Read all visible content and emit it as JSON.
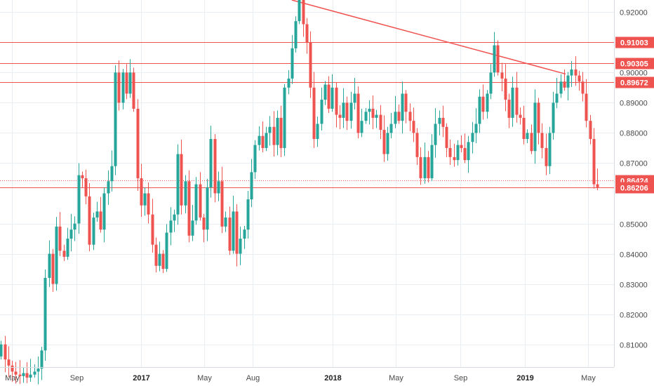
{
  "colors": {
    "up": "#26a69a",
    "down": "#ef5350",
    "grid": "#e9eef2",
    "level": "#ef5350",
    "trend": "#ef5350",
    "label_bg": "#ef5350",
    "axis_text": "#4a4a4a",
    "background": "#ffffff"
  },
  "chart_data": {
    "type": "candlestick",
    "title": "",
    "xlabel": "",
    "ylabel": "",
    "ylim": [
      0.8025,
      0.924
    ],
    "x_range": [
      "2016-04-08",
      "2019-06-20"
    ],
    "grid": true,
    "y_ticks": [
      "0.92000",
      "0.91000",
      "0.90000",
      "0.89000",
      "0.88000",
      "0.87000",
      "0.85000",
      "0.84000",
      "0.83000",
      "0.82000",
      "0.81000"
    ],
    "x_ticks": [
      {
        "label": "May",
        "date": "2016-05-01",
        "bold": false
      },
      {
        "label": "Sep",
        "date": "2016-09-01",
        "bold": false
      },
      {
        "label": "2017",
        "date": "2017-01-01",
        "bold": true
      },
      {
        "label": "May",
        "date": "2017-05-01",
        "bold": false
      },
      {
        "label": "Aug",
        "date": "2017-08-01",
        "bold": false
      },
      {
        "label": "2018",
        "date": "2018-01-01",
        "bold": true
      },
      {
        "label": "May",
        "date": "2018-05-01",
        "bold": false
      },
      {
        "label": "Sep",
        "date": "2018-09-01",
        "bold": false
      },
      {
        "label": "2019",
        "date": "2019-01-01",
        "bold": true
      },
      {
        "label": "May",
        "date": "2019-05-01",
        "bold": false
      }
    ],
    "levels": [
      {
        "label": "0.91003",
        "value": 0.91003,
        "style": "solid"
      },
      {
        "label": "0.90305",
        "value": 0.90305,
        "style": "solid"
      },
      {
        "label": "0.89672",
        "value": 0.89672,
        "style": "solid"
      },
      {
        "label": "0.86424",
        "value": 0.86424,
        "style": "dotted"
      },
      {
        "label": "0.86206",
        "value": 0.86206,
        "style": "solid"
      }
    ],
    "trendline": {
      "from": {
        "date": "2017-10-15",
        "value": 0.924
      },
      "to": {
        "date": "2019-03-20",
        "value": 0.8995
      }
    },
    "start_date": "2016-04-10",
    "interval_days": 7,
    "start_price": 0.806,
    "closes": [
      0.81,
      0.805,
      0.803,
      0.801,
      0.8,
      0.7995,
      0.8005,
      0.799,
      0.8,
      0.801,
      0.802,
      0.808,
      0.832,
      0.84,
      0.83,
      0.849,
      0.841,
      0.839,
      0.845,
      0.848,
      0.85,
      0.866,
      0.865,
      0.859,
      0.843,
      0.852,
      0.854,
      0.848,
      0.86,
      0.864,
      0.869,
      0.9,
      0.89,
      0.9,
      0.893,
      0.9,
      0.888,
      0.865,
      0.856,
      0.86,
      0.853,
      0.843,
      0.836,
      0.84,
      0.835,
      0.847,
      0.851,
      0.853,
      0.873,
      0.856,
      0.864,
      0.846,
      0.851,
      0.863,
      0.852,
      0.848,
      0.862,
      0.878,
      0.86,
      0.864,
      0.849,
      0.852,
      0.841,
      0.854,
      0.84,
      0.845,
      0.848,
      0.858,
      0.867,
      0.876,
      0.879,
      0.875,
      0.88,
      0.882,
      0.876,
      0.885,
      0.875,
      0.895,
      0.898,
      0.908,
      0.917,
      0.925,
      0.916,
      0.91,
      0.895,
      0.878,
      0.883,
      0.891,
      0.896,
      0.888,
      0.895,
      0.886,
      0.885,
      0.89,
      0.884,
      0.89,
      0.893,
      0.88,
      0.884,
      0.887,
      0.888,
      0.885,
      0.886,
      0.881,
      0.873,
      0.88,
      0.883,
      0.887,
      0.884,
      0.893,
      0.887,
      0.884,
      0.88,
      0.872,
      0.865,
      0.872,
      0.865,
      0.876,
      0.883,
      0.885,
      0.882,
      0.875,
      0.872,
      0.871,
      0.876,
      0.875,
      0.871,
      0.877,
      0.88,
      0.883,
      0.892,
      0.887,
      0.893,
      0.9,
      0.909,
      0.9,
      0.898,
      0.891,
      0.885,
      0.895,
      0.886,
      0.885,
      0.878,
      0.88,
      0.874,
      0.89,
      0.88,
      0.875,
      0.869,
      0.88,
      0.89,
      0.893,
      0.897,
      0.895,
      0.899,
      0.901,
      0.899,
      0.897,
      0.893,
      0.884,
      0.878,
      0.863,
      0.862
    ]
  }
}
